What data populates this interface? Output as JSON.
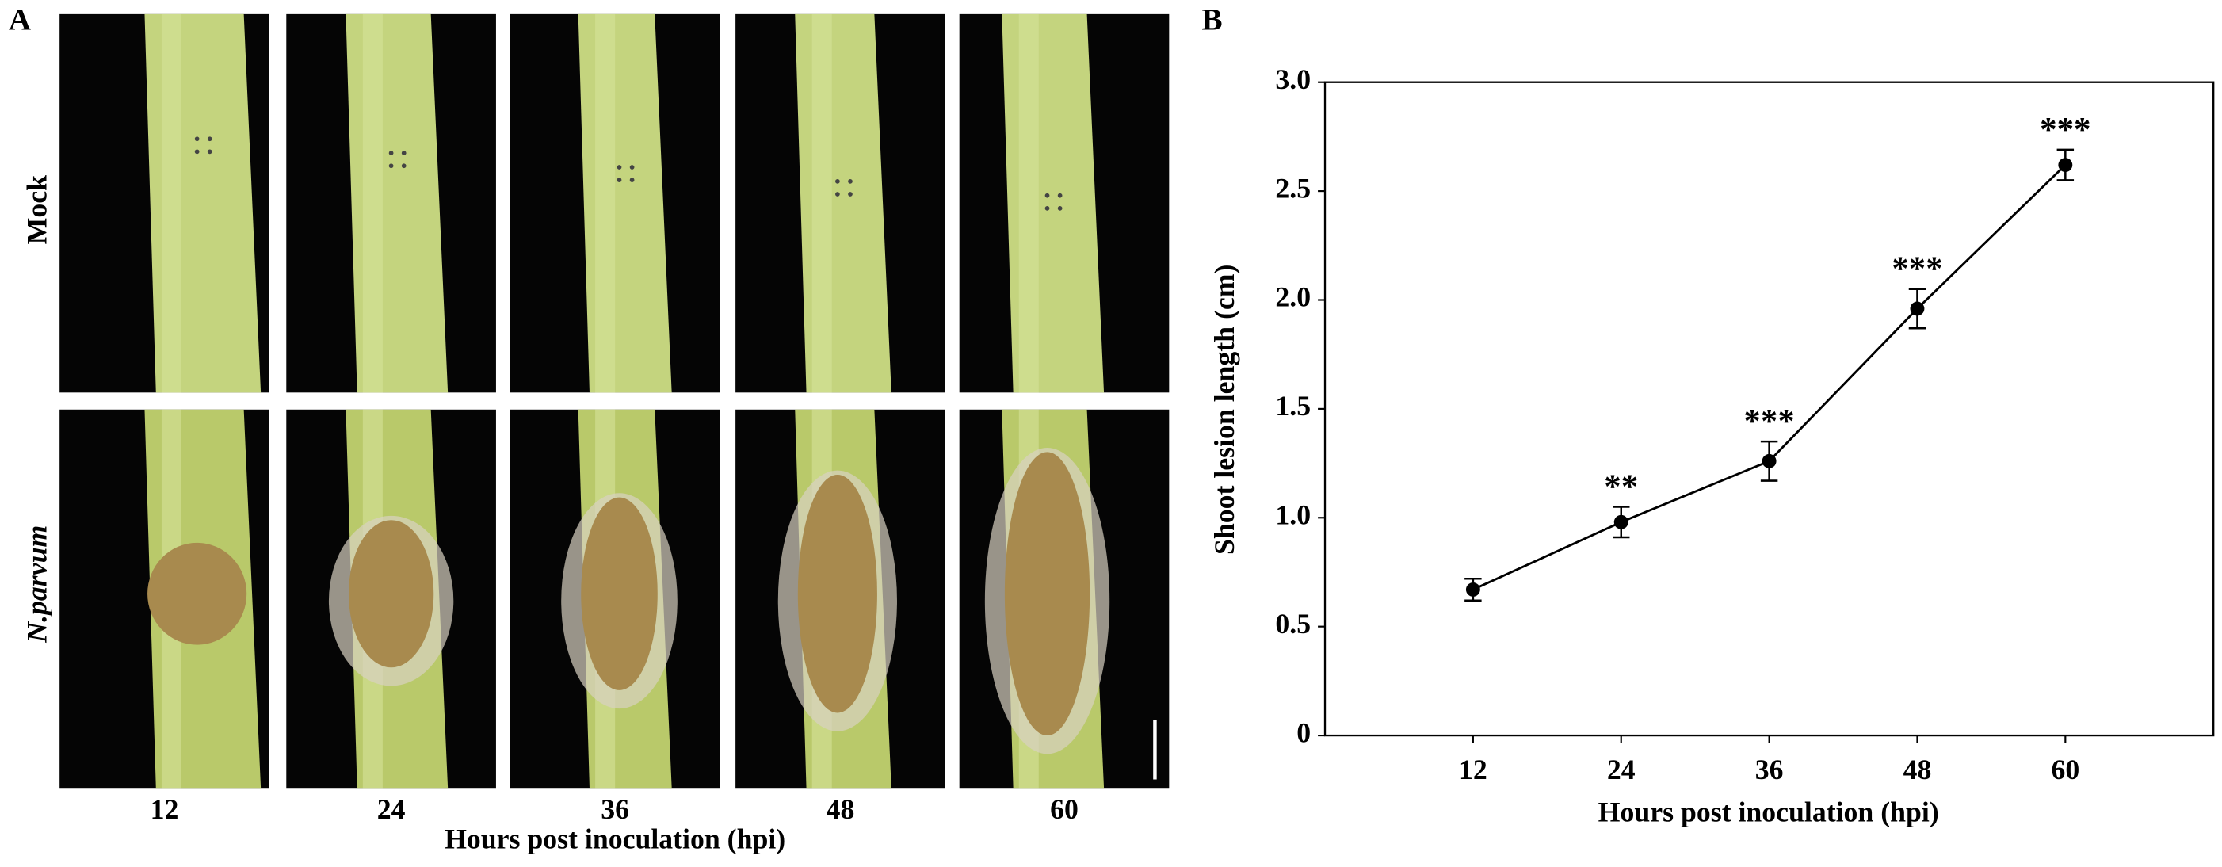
{
  "figure_a": {
    "panel_label": "A",
    "rows": [
      "Mock",
      "N.parvum"
    ],
    "columns": [
      "12",
      "24",
      "36",
      "48",
      "60"
    ],
    "x_label": "Hours post inoculation (hpi)"
  },
  "chart_data": {
    "type": "line",
    "panel_label": "B",
    "x_label": "Hours post inoculation (hpi)",
    "y_label": "Shoot lesion length (cm)",
    "x": [
      12,
      24,
      36,
      48,
      60
    ],
    "values": [
      0.67,
      0.98,
      1.26,
      1.96,
      2.62
    ],
    "errors": [
      0.05,
      0.07,
      0.09,
      0.09,
      0.07
    ],
    "annotations": [
      null,
      "**",
      "***",
      "***",
      "***"
    ],
    "color": "#000000",
    "xlim": [
      0,
      72
    ],
    "xticks": [
      12,
      24,
      36,
      48,
      60
    ],
    "ylim": [
      0,
      3
    ],
    "yticks": [
      0,
      0.5,
      {
        "value": 1,
        "label": "1.0"
      },
      1.5,
      {
        "value": 2,
        "label": "2.0"
      },
      2.5,
      {
        "value": 3,
        "label": "3.0"
      }
    ],
    "grid": false
  }
}
